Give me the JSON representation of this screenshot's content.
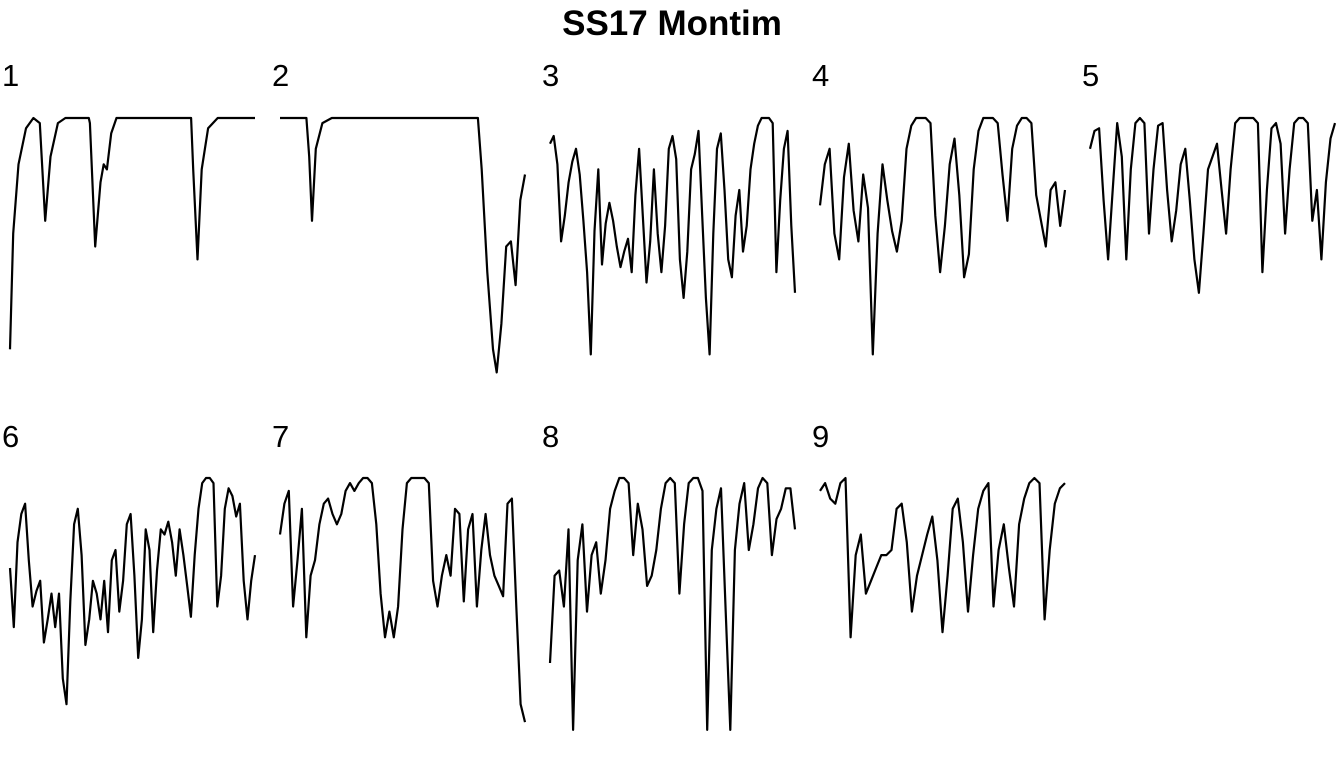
{
  "title": "SS17 Montim",
  "chart_data": {
    "type": "line",
    "title": "SS17 Montim",
    "ylim": [
      0,
      1
    ],
    "grid": false,
    "axes_visible": false,
    "panels": [
      {
        "label": "1",
        "segments": [
          [
            0.0,
            0.1,
            0.03,
            0.55,
            0.08,
            0.82,
            0.15,
            0.96,
            0.22,
            1.0,
            0.28,
            0.98,
            0.33,
            0.6,
            0.38,
            0.85,
            0.45,
            0.98,
            0.52,
            1.0,
            0.7,
            1.0,
            0.74,
            1.0,
            0.75,
            0.98,
            0.8,
            0.5,
            0.85,
            0.75,
            0.88,
            0.82,
            0.91,
            0.8,
            0.95,
            0.94,
            1.0,
            1.0,
            1.1,
            1.0,
            1.6,
            1.0,
            1.7,
            1.0,
            1.72,
            0.8,
            1.76,
            0.45,
            1.8,
            0.8,
            1.86,
            0.96,
            1.95,
            1.0,
            2.3,
            1.0
          ]
        ]
      },
      {
        "label": "2",
        "segments": [
          [
            0.0,
            1.0,
            0.28,
            1.0,
            0.31,
            0.85,
            0.34,
            0.6,
            0.38,
            0.88,
            0.45,
            0.98,
            0.55,
            1.0,
            2.0,
            1.0,
            2.1,
            1.0,
            2.14,
            0.8,
            2.2,
            0.4,
            2.26,
            0.1,
            2.3,
            0.01,
            2.35,
            0.2,
            2.4,
            0.5,
            2.45,
            0.52,
            2.5,
            0.35,
            2.55,
            0.68,
            2.6,
            0.78
          ]
        ]
      },
      {
        "label": "3",
        "type": "dense",
        "values": [
          0.9,
          0.93,
          0.82,
          0.52,
          0.62,
          0.75,
          0.83,
          0.88,
          0.78,
          0.6,
          0.4,
          0.08,
          0.56,
          0.8,
          0.43,
          0.59,
          0.67,
          0.6,
          0.5,
          0.42,
          0.48,
          0.53,
          0.4,
          0.7,
          0.88,
          0.62,
          0.36,
          0.52,
          0.8,
          0.55,
          0.4,
          0.58,
          0.88,
          0.93,
          0.84,
          0.45,
          0.3,
          0.48,
          0.8,
          0.86,
          0.95,
          0.62,
          0.3,
          0.08,
          0.55,
          0.88,
          0.94,
          0.72,
          0.45,
          0.38,
          0.62,
          0.72,
          0.48,
          0.58,
          0.8,
          0.9,
          0.97,
          1.0,
          1.0,
          1.0,
          0.98,
          0.4,
          0.68,
          0.88,
          0.95,
          0.58,
          0.32
        ]
      },
      {
        "label": "4",
        "type": "dense",
        "values": [
          0.66,
          0.82,
          0.88,
          0.55,
          0.45,
          0.77,
          0.9,
          0.64,
          0.52,
          0.78,
          0.65,
          0.08,
          0.55,
          0.82,
          0.68,
          0.56,
          0.48,
          0.6,
          0.88,
          0.97,
          1.0,
          1.0,
          1.0,
          0.98,
          0.62,
          0.4,
          0.58,
          0.82,
          0.92,
          0.7,
          0.38,
          0.47,
          0.8,
          0.95,
          1.0,
          1.0,
          1.0,
          0.98,
          0.78,
          0.6,
          0.88,
          0.97,
          1.0,
          1.0,
          0.98,
          0.7,
          0.6,
          0.5,
          0.72,
          0.75,
          0.58,
          0.72
        ]
      },
      {
        "label": "5",
        "type": "dense",
        "values": [
          0.88,
          0.95,
          0.96,
          0.68,
          0.45,
          0.72,
          0.98,
          0.85,
          0.45,
          0.8,
          0.98,
          1.0,
          0.98,
          0.55,
          0.8,
          0.97,
          0.98,
          0.72,
          0.52,
          0.64,
          0.82,
          0.88,
          0.68,
          0.45,
          0.32,
          0.55,
          0.8,
          0.85,
          0.9,
          0.72,
          0.55,
          0.8,
          0.98,
          1.0,
          1.0,
          1.0,
          1.0,
          0.98,
          0.4,
          0.72,
          0.96,
          0.98,
          0.9,
          0.55,
          0.8,
          0.98,
          1.0,
          1.0,
          0.98,
          0.6,
          0.72,
          0.45,
          0.75,
          0.92,
          0.98
        ]
      },
      {
        "label": "6",
        "type": "dense",
        "values": [
          0.65,
          0.42,
          0.75,
          0.86,
          0.9,
          0.68,
          0.5,
          0.56,
          0.6,
          0.36,
          0.45,
          0.55,
          0.42,
          0.55,
          0.22,
          0.12,
          0.52,
          0.82,
          0.88,
          0.7,
          0.35,
          0.45,
          0.6,
          0.55,
          0.45,
          0.6,
          0.4,
          0.68,
          0.72,
          0.48,
          0.6,
          0.82,
          0.86,
          0.62,
          0.3,
          0.45,
          0.8,
          0.72,
          0.4,
          0.64,
          0.8,
          0.78,
          0.83,
          0.75,
          0.62,
          0.8,
          0.7,
          0.58,
          0.46,
          0.7,
          0.88,
          0.98,
          1.0,
          1.0,
          0.98,
          0.5,
          0.62,
          0.88,
          0.96,
          0.93,
          0.85,
          0.9,
          0.6,
          0.45,
          0.6,
          0.7
        ]
      },
      {
        "label": "7",
        "type": "dense",
        "values": [
          0.78,
          0.9,
          0.95,
          0.5,
          0.68,
          0.88,
          0.38,
          0.62,
          0.68,
          0.82,
          0.9,
          0.92,
          0.86,
          0.82,
          0.86,
          0.95,
          0.98,
          0.95,
          0.98,
          1.0,
          1.0,
          0.98,
          0.82,
          0.55,
          0.38,
          0.48,
          0.38,
          0.5,
          0.8,
          0.98,
          1.0,
          1.0,
          1.0,
          1.0,
          0.98,
          0.6,
          0.5,
          0.62,
          0.7,
          0.62,
          0.88,
          0.86,
          0.52,
          0.8,
          0.86,
          0.5,
          0.72,
          0.86,
          0.7,
          0.62,
          0.58,
          0.54,
          0.9,
          0.92,
          0.5,
          0.12,
          0.05
        ]
      },
      {
        "label": "8",
        "type": "dense",
        "values": [
          0.28,
          0.62,
          0.64,
          0.5,
          0.8,
          0.02,
          0.68,
          0.82,
          0.48,
          0.7,
          0.75,
          0.55,
          0.68,
          0.88,
          0.95,
          1.0,
          1.0,
          0.98,
          0.7,
          0.9,
          0.8,
          0.58,
          0.62,
          0.72,
          0.88,
          0.98,
          1.0,
          0.98,
          0.55,
          0.82,
          0.98,
          1.0,
          1.0,
          0.95,
          0.02,
          0.72,
          0.88,
          0.96,
          0.48,
          0.02,
          0.72,
          0.9,
          0.98,
          0.72,
          0.82,
          0.96,
          1.0,
          0.98,
          0.7,
          0.84,
          0.88,
          0.96,
          0.96,
          0.8
        ]
      },
      {
        "label": "9",
        "type": "dense",
        "values": [
          0.95,
          0.98,
          0.92,
          0.9,
          0.98,
          1.0,
          0.38,
          0.7,
          0.78,
          0.55,
          0.6,
          0.65,
          0.7,
          0.7,
          0.72,
          0.88,
          0.9,
          0.75,
          0.48,
          0.62,
          0.7,
          0.78,
          0.85,
          0.68,
          0.4,
          0.62,
          0.88,
          0.92,
          0.75,
          0.48,
          0.7,
          0.88,
          0.95,
          0.98,
          0.5,
          0.72,
          0.82,
          0.65,
          0.5,
          0.82,
          0.92,
          0.98,
          1.0,
          0.98,
          0.45,
          0.72,
          0.9,
          0.96,
          0.98
        ]
      }
    ]
  }
}
